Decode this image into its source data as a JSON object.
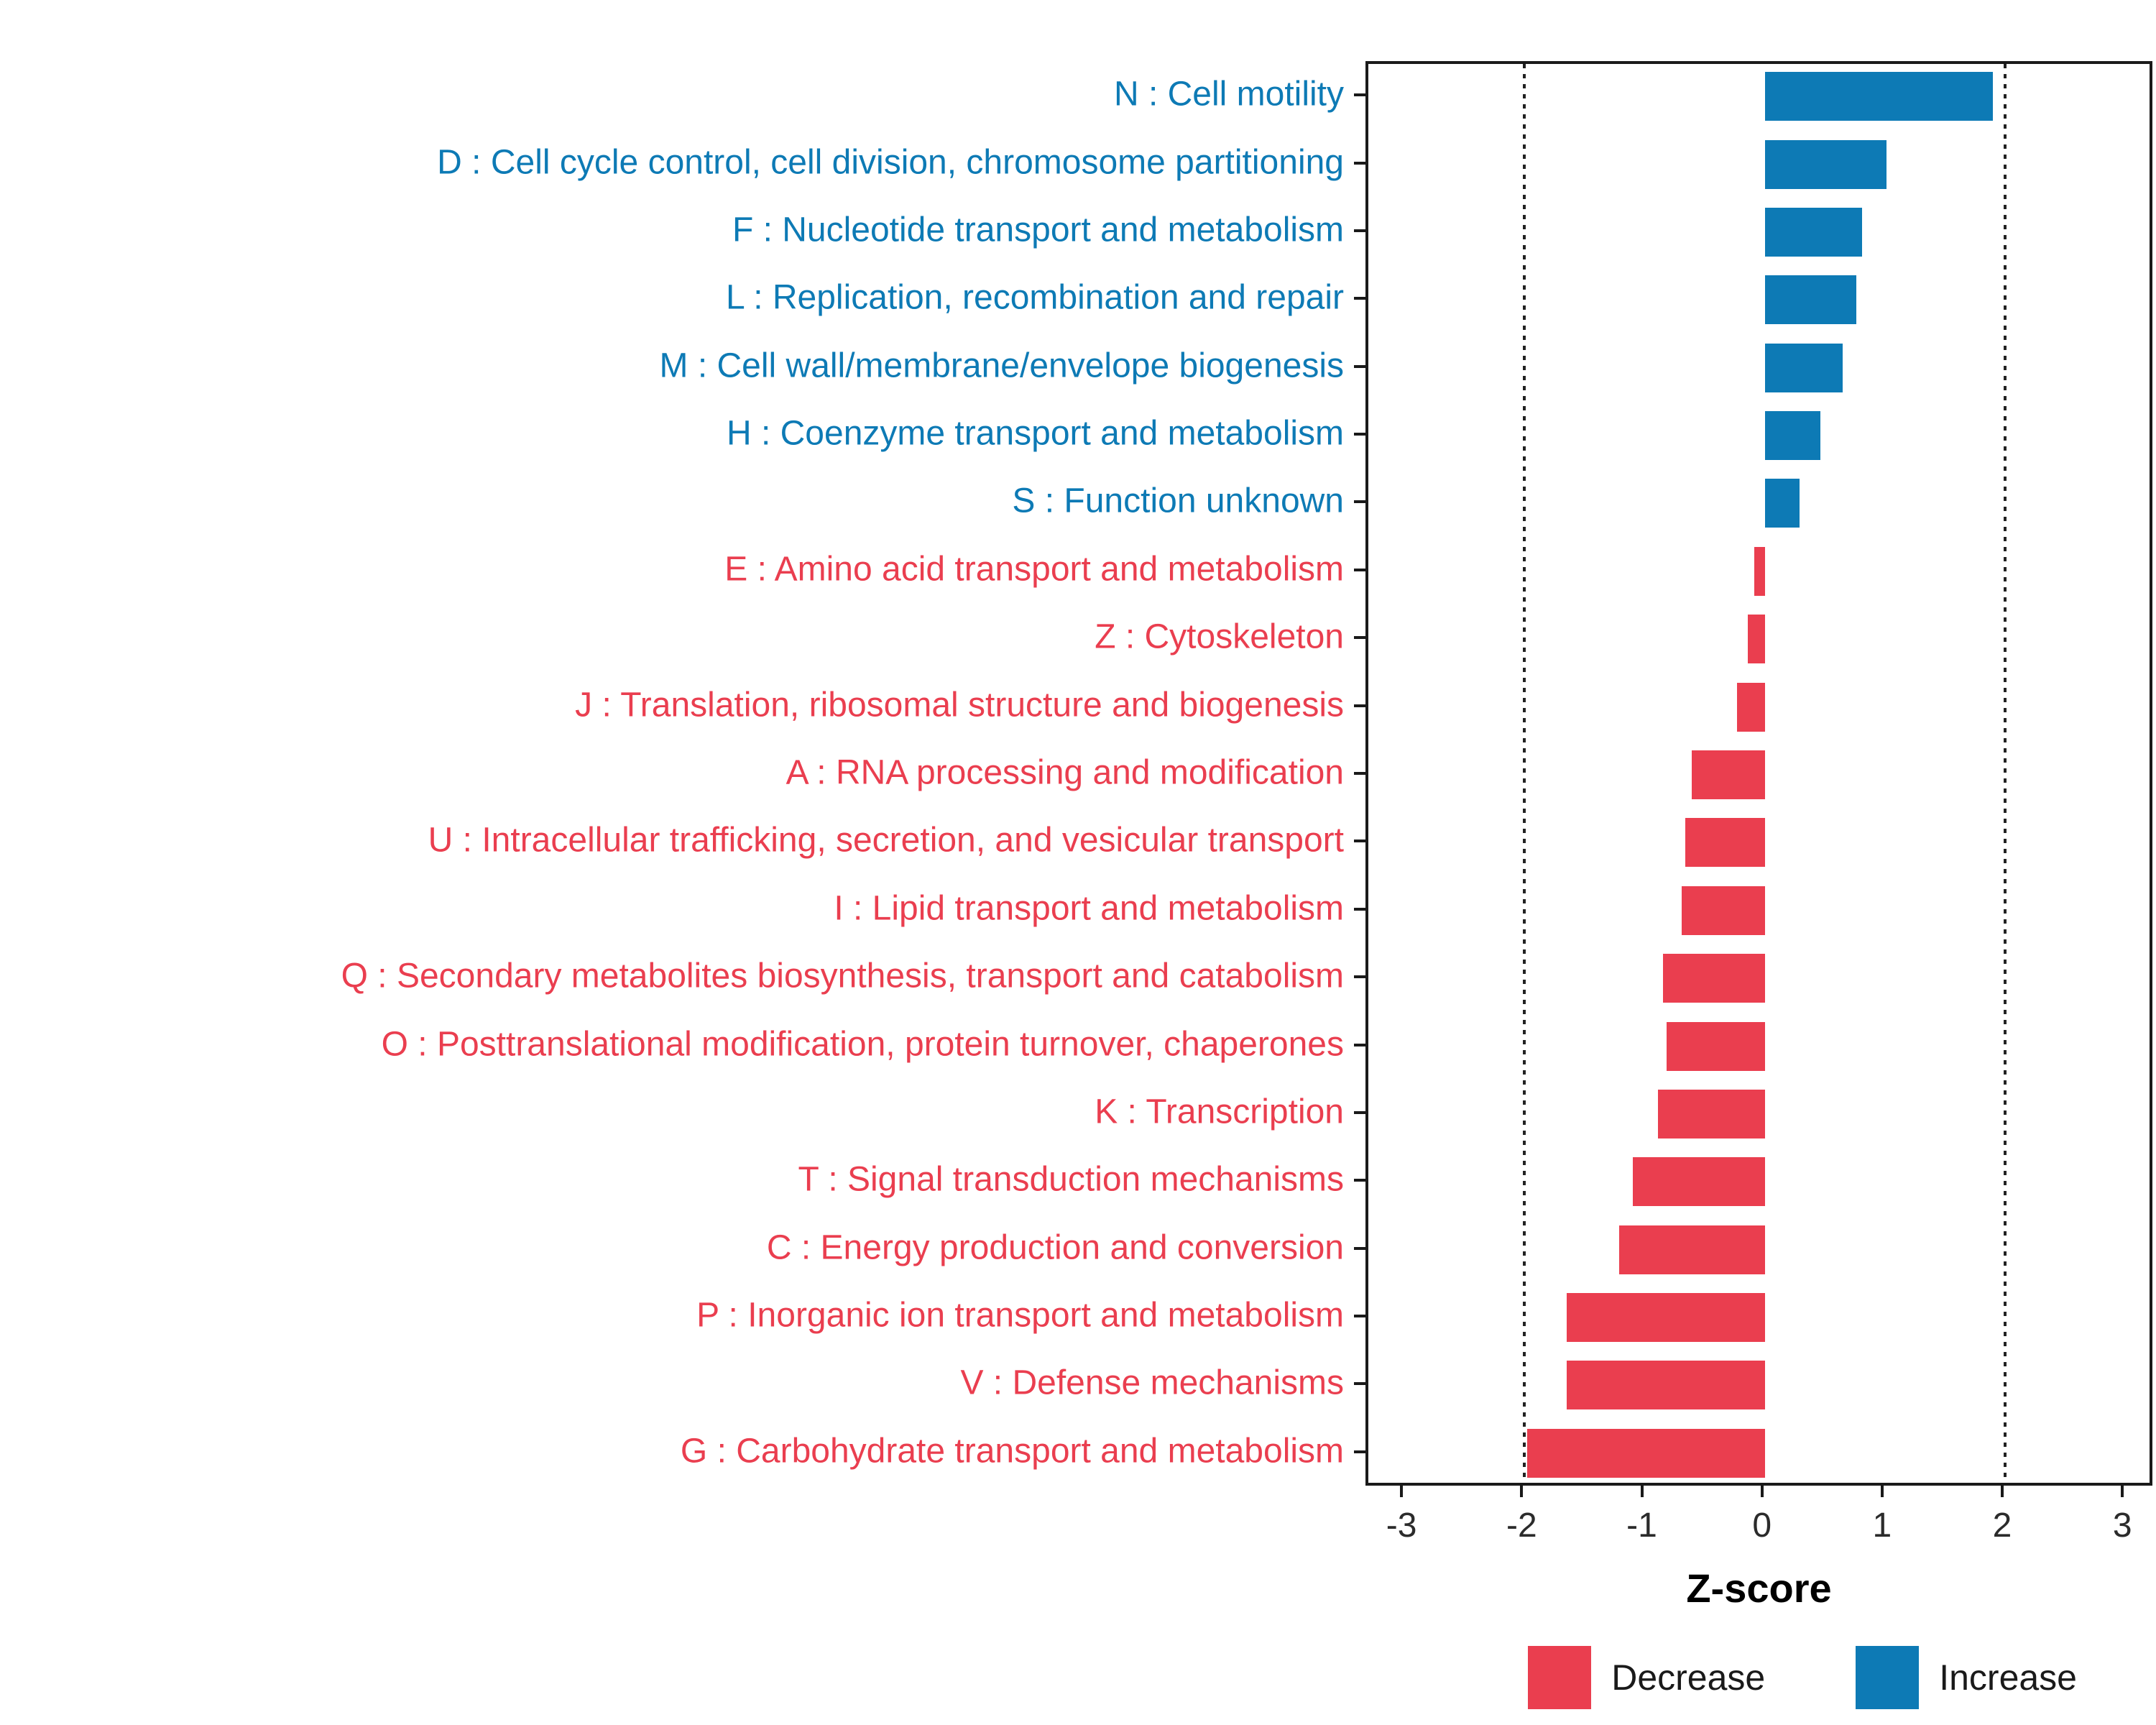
{
  "chart_data": {
    "type": "bar",
    "orientation": "horizontal",
    "title": "",
    "xlabel": "Z-score",
    "xlim": [
      -3.3,
      3.25
    ],
    "x_ticks": [
      -3,
      -2,
      -1,
      0,
      1,
      2,
      3
    ],
    "reference_lines": [
      -2,
      2
    ],
    "grid": "dotted vertical lines at -2 and 2 only",
    "legend_position": "bottom-right",
    "categories": [
      "N : Cell motility",
      "D : Cell cycle control, cell division, chromosome partitioning",
      "F : Nucleotide transport and metabolism",
      "L : Replication, recombination and repair",
      "M : Cell wall/membrane/envelope biogenesis",
      "H : Coenzyme transport and metabolism",
      "S : Function unknown",
      "E : Amino acid transport and metabolism",
      "Z : Cytoskeleton",
      "J : Translation, ribosomal structure and biogenesis",
      "A : RNA processing and modification",
      "U : Intracellular trafficking, secretion, and vesicular transport",
      "I : Lipid transport and metabolism",
      "Q : Secondary metabolites biosynthesis, transport and catabolism",
      "O : Posttranslational modification, protein turnover, chaperones",
      "K : Transcription",
      "T : Signal transduction mechanisms",
      "C : Energy production and conversion",
      "P : Inorganic ion transport and metabolism",
      "V : Defense mechanisms",
      "G : Carbohydrate transport and metabolism"
    ],
    "values": [
      1.9,
      1.01,
      0.81,
      0.76,
      0.65,
      0.46,
      0.29,
      -0.09,
      -0.14,
      -0.23,
      -0.61,
      -0.66,
      -0.69,
      -0.85,
      -0.82,
      -0.89,
      -1.1,
      -1.21,
      -1.65,
      -1.65,
      -1.98
    ],
    "directions": [
      "increase",
      "increase",
      "increase",
      "increase",
      "increase",
      "increase",
      "increase",
      "decrease",
      "decrease",
      "decrease",
      "decrease",
      "decrease",
      "decrease",
      "decrease",
      "decrease",
      "decrease",
      "decrease",
      "decrease",
      "decrease",
      "decrease",
      "decrease"
    ],
    "legend": [
      {
        "label": "Decrease",
        "color": "#ea3e4f"
      },
      {
        "label": "Increase",
        "color": "#0d7ab5"
      }
    ]
  },
  "colors": {
    "increase": "#0d7ab5",
    "decrease": "#ea3e4f",
    "panel_border": "#1a1a1a",
    "axis_text": "#2b2b2b"
  }
}
